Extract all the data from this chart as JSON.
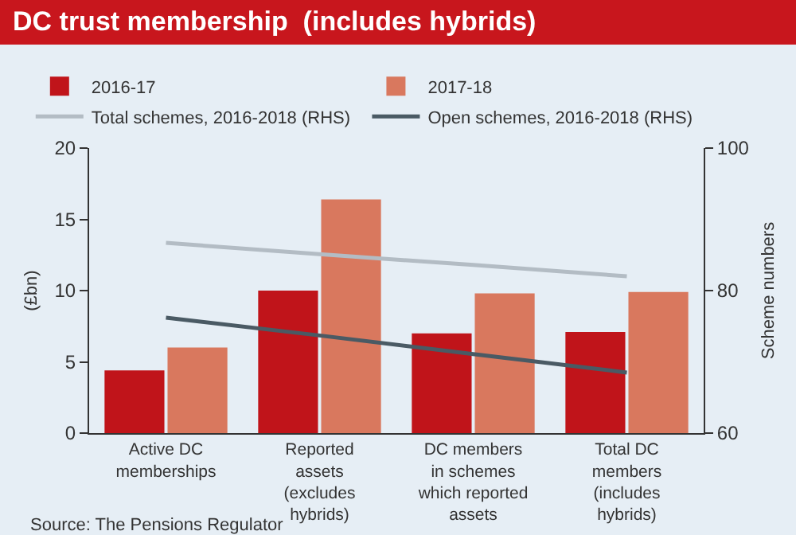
{
  "chart_data": {
    "type": "bar",
    "title": "DC trust membership  (includes hybrids)",
    "categories": [
      "Active DC\nmemberships",
      "Reported\nassets\n(excludes\nhybrids)",
      "DC members\nin schemes\nwhich reported\nassets",
      "Total DC\nmembers\n(includes\nhybrids)"
    ],
    "series": [
      {
        "name": "2016-17",
        "color": "#c0141a",
        "values": [
          4.4,
          10.0,
          7.0,
          7.1
        ]
      },
      {
        "name": "2017-18",
        "color": "#d9785e",
        "values": [
          6.0,
          16.4,
          9.8,
          9.9
        ]
      },
      {
        "name": "Total schemes, 2016-2018 (RHS)",
        "type": "line",
        "axis": "y2",
        "color": "#b3bcc4",
        "values": [
          86.7,
          85.1,
          83.6,
          82.0
        ]
      },
      {
        "name": "Open schemes, 2016-2018 (RHS)",
        "type": "line",
        "axis": "y2",
        "color": "#4a5a64",
        "values": [
          76.2,
          73.7,
          71.1,
          68.5
        ]
      }
    ],
    "ylabel": "(£bn)",
    "y2label": "Scheme numbers",
    "ylim": [
      0,
      20
    ],
    "yticks": [
      0,
      5,
      10,
      15,
      20
    ],
    "y2lim": [
      60,
      100
    ],
    "y2ticks": [
      60,
      80,
      100
    ],
    "grid": false,
    "legend": "top",
    "annotations": [
      "Source: The Pensions Regulator"
    ]
  }
}
